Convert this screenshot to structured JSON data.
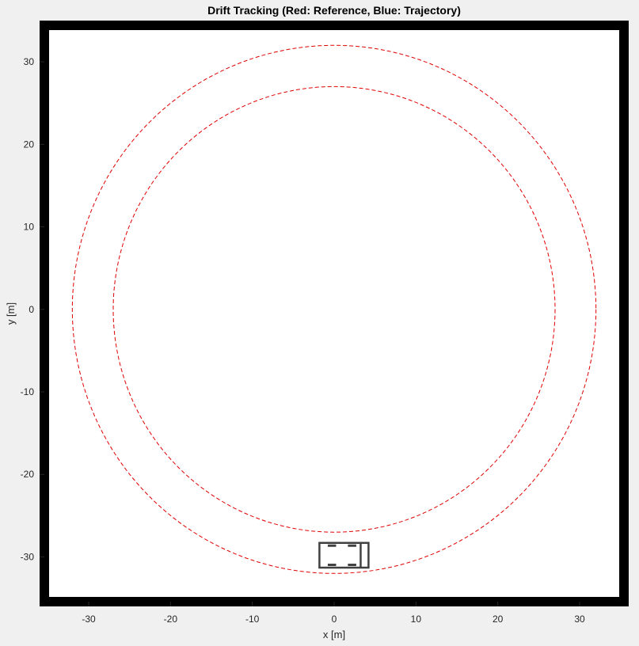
{
  "figure": {
    "title": "Drift Tracking (Red: Reference, Blue: Trajectory)"
  },
  "chart_data": {
    "type": "line",
    "title": "Drift Tracking (Red: Reference, Blue: Trajectory)",
    "xlabel": "x [m]",
    "ylabel": "y [m]",
    "xlim": [
      -36,
      36
    ],
    "ylim": [
      -36,
      35
    ],
    "xticks": [
      -30,
      -20,
      -10,
      0,
      10,
      20,
      30
    ],
    "yticks": [
      -30,
      -20,
      -10,
      0,
      10,
      20,
      30
    ],
    "grid": false,
    "colors": {
      "reference": "#e00000",
      "track_border": "#000000",
      "vehicle": "#404040",
      "axes_background": "#ffffff",
      "figure_background": "#f0f0f0"
    },
    "series": [
      {
        "center": [
          0,
          0
        ],
        "radius": 32,
        "style": "dashed"
      },
      {
        "center": [
          0,
          0
        ],
        "radius": 27,
        "style": "dashed"
      }
    ],
    "vehicle": {
      "center": [
        1.2,
        -29.8
      ],
      "length": 6,
      "width": 3,
      "heading_deg": 0
    }
  }
}
